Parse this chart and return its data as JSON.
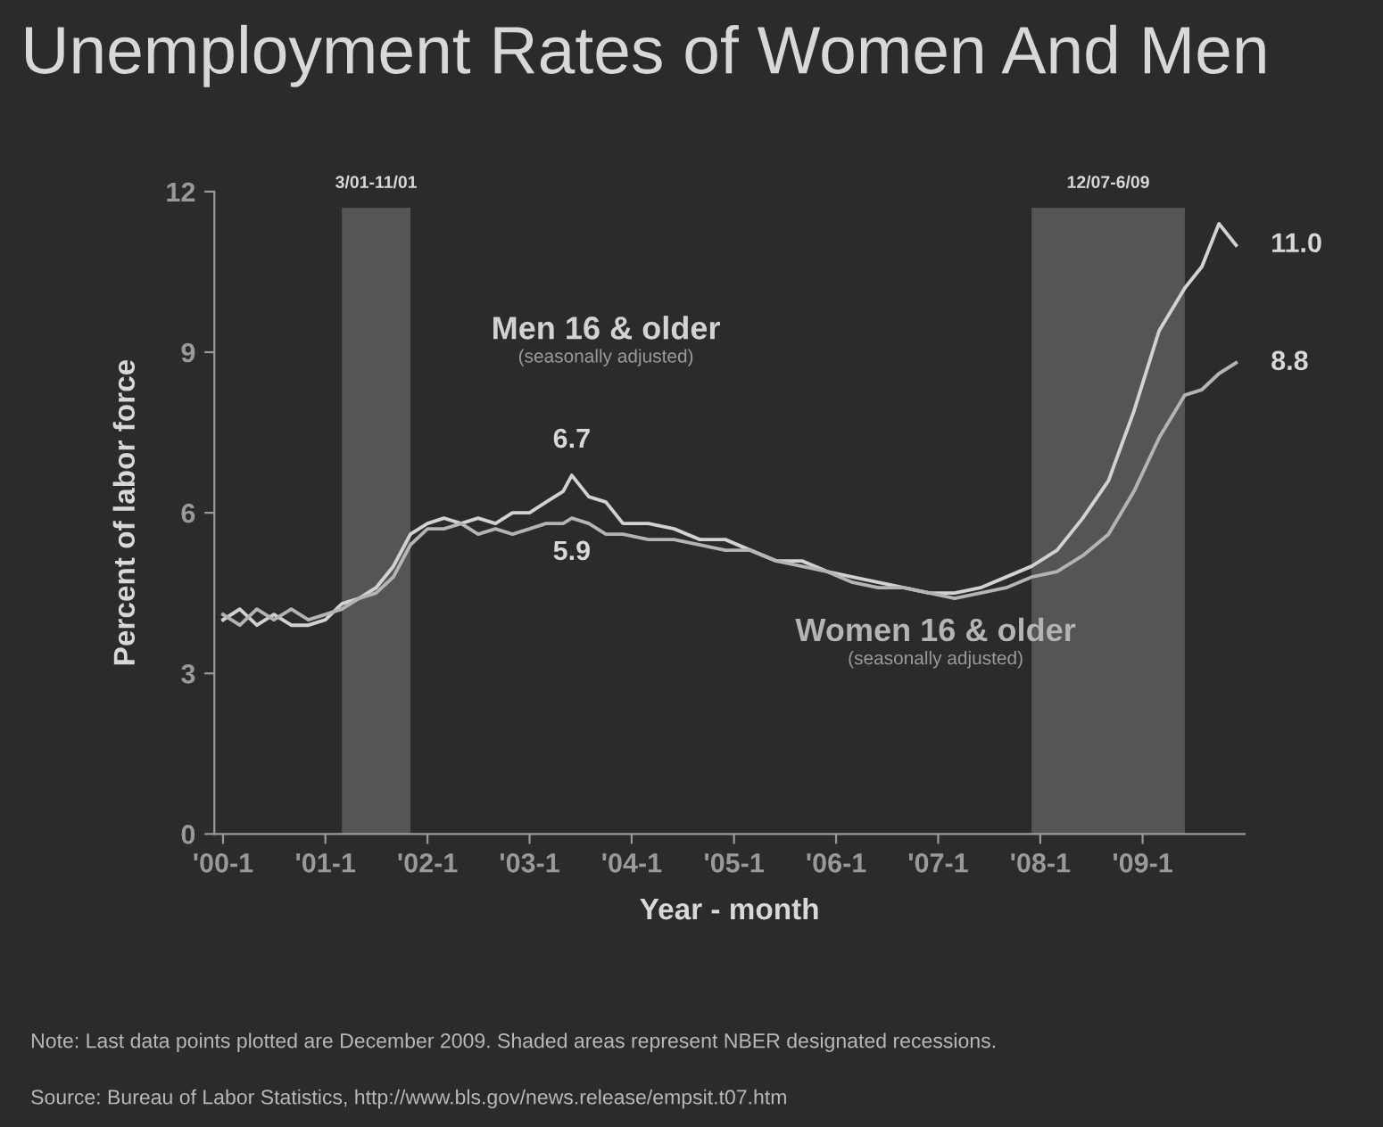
{
  "chart_data": {
    "type": "line",
    "title": "Unemployment Rates of Women And Men",
    "xlabel": "Year - month",
    "ylabel": "Percent of labor force",
    "x": [
      "2000-01",
      "2000-03",
      "2000-05",
      "2000-07",
      "2000-09",
      "2000-11",
      "2001-01",
      "2001-03",
      "2001-05",
      "2001-07",
      "2001-09",
      "2001-11",
      "2002-01",
      "2002-03",
      "2002-05",
      "2002-07",
      "2002-09",
      "2002-11",
      "2003-01",
      "2003-03",
      "2003-05",
      "2003-06",
      "2003-08",
      "2003-10",
      "2003-12",
      "2004-03",
      "2004-06",
      "2004-09",
      "2004-12",
      "2005-03",
      "2005-06",
      "2005-09",
      "2005-12",
      "2006-03",
      "2006-06",
      "2006-09",
      "2006-12",
      "2007-03",
      "2007-06",
      "2007-09",
      "2007-12",
      "2008-03",
      "2008-06",
      "2008-09",
      "2008-12",
      "2009-03",
      "2009-06",
      "2009-08",
      "2009-10",
      "2009-12"
    ],
    "series": [
      {
        "name": "Men 16 & older",
        "color": "#d2d2d2",
        "values": [
          4.0,
          4.2,
          3.9,
          4.1,
          3.9,
          3.9,
          4.0,
          4.3,
          4.4,
          4.6,
          5.0,
          5.6,
          5.8,
          5.9,
          5.8,
          5.9,
          5.8,
          6.0,
          6.0,
          6.2,
          6.4,
          6.7,
          6.3,
          6.2,
          5.8,
          5.8,
          5.7,
          5.5,
          5.5,
          5.3,
          5.1,
          5.1,
          4.9,
          4.8,
          4.7,
          4.6,
          4.5,
          4.5,
          4.6,
          4.8,
          5.0,
          5.3,
          5.9,
          6.6,
          7.9,
          9.4,
          10.2,
          10.6,
          11.4,
          11.0
        ]
      },
      {
        "name": "Women 16 & older",
        "color": "#b4b4b4",
        "values": [
          4.1,
          3.9,
          4.2,
          4.0,
          4.2,
          4.0,
          4.1,
          4.2,
          4.4,
          4.5,
          4.8,
          5.4,
          5.7,
          5.7,
          5.8,
          5.6,
          5.7,
          5.6,
          5.7,
          5.8,
          5.8,
          5.9,
          5.8,
          5.6,
          5.6,
          5.5,
          5.5,
          5.4,
          5.3,
          5.3,
          5.1,
          5.0,
          4.9,
          4.7,
          4.6,
          4.6,
          4.5,
          4.4,
          4.5,
          4.6,
          4.8,
          4.9,
          5.2,
          5.6,
          6.4,
          7.4,
          8.2,
          8.3,
          8.6,
          8.8
        ]
      }
    ],
    "annotations": [
      {
        "text": "6.7",
        "x": "2003-06",
        "y": 6.7
      },
      {
        "text": "5.9",
        "x": "2003-06",
        "y": 5.9
      },
      {
        "text": "11.0",
        "x": "2009-12",
        "y": 11.0
      },
      {
        "text": "8.8",
        "x": "2009-12",
        "y": 8.8
      },
      "(seasonally adjusted)",
      "(seasonally adjusted)",
      "Note: Last data points plotted are December 2009. Shaded areas represent NBER designated recessions.",
      "Source: Bureau of Labor Statistics, http://www.bls.gov/news.release/empsit.t07.htm"
    ],
    "bands": [
      {
        "axis": "x",
        "from": "2001-03",
        "to": "2001-11",
        "label": "3/01-11/01",
        "color": "#555555"
      },
      {
        "axis": "x",
        "from": "2007-12",
        "to": "2009-06",
        "label": "12/07-6/09",
        "color": "#555555"
      }
    ],
    "xlim": [
      "1999-12",
      "2010-01"
    ],
    "xticks": [
      {
        "value": "2000-01",
        "label": "'00-1"
      },
      {
        "value": "2001-01",
        "label": "'01-1"
      },
      {
        "value": "2002-01",
        "label": "'02-1"
      },
      {
        "value": "2003-01",
        "label": "'03-1"
      },
      {
        "value": "2004-01",
        "label": "'04-1"
      },
      {
        "value": "2005-01",
        "label": "'05-1"
      },
      {
        "value": "2006-01",
        "label": "'06-1"
      },
      {
        "value": "2007-01",
        "label": "'07-1"
      },
      {
        "value": "2008-01",
        "label": "'08-1"
      },
      {
        "value": "2009-01",
        "label": "'09-1"
      }
    ],
    "ylim": [
      0,
      12
    ],
    "yticks": [
      0,
      3,
      6,
      9,
      12
    ],
    "grid": false,
    "legend": false,
    "marker": "none",
    "line_style": "solid"
  }
}
